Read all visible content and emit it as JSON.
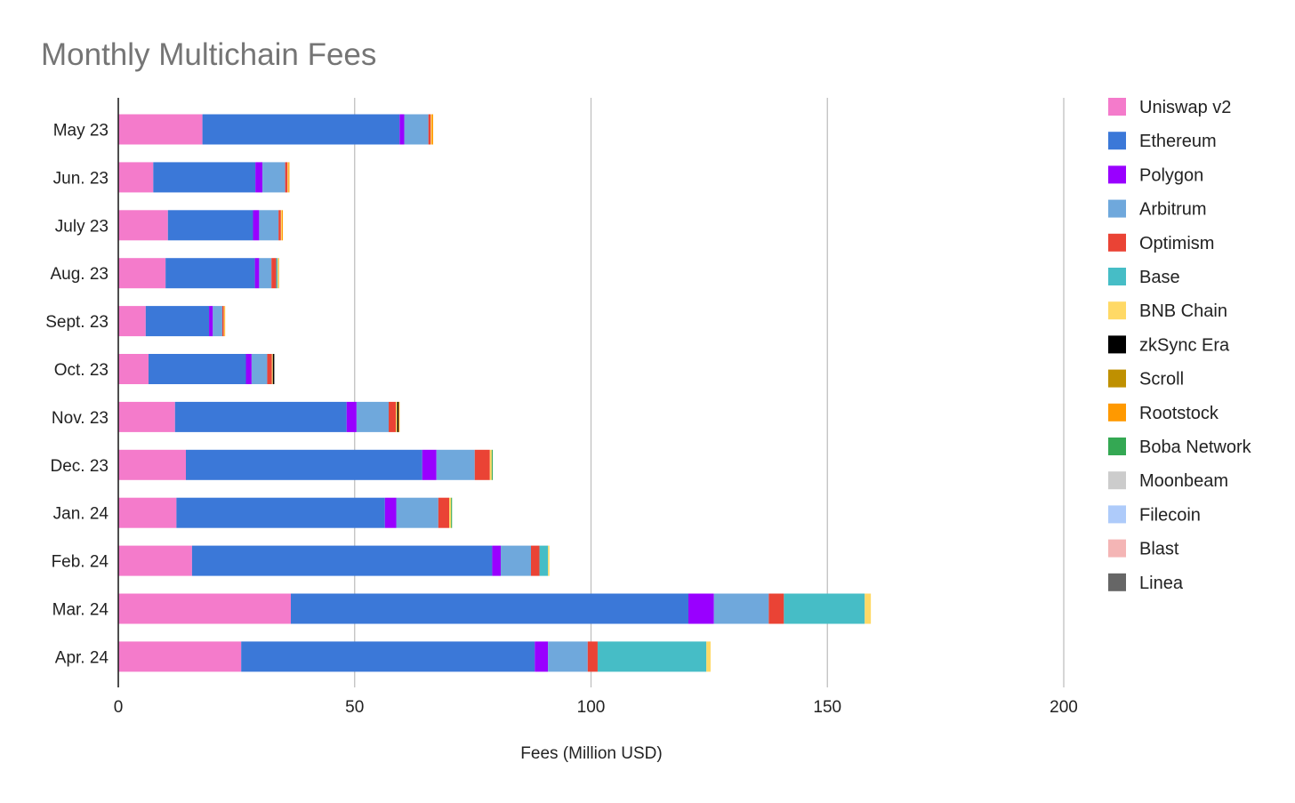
{
  "chart_data": {
    "type": "bar",
    "orientation": "horizontal",
    "stacked": true,
    "title": "Monthly Multichain Fees",
    "xlabel": "Fees (Million USD)",
    "ylabel": "",
    "xlim": [
      0,
      200
    ],
    "xticks": [
      "0",
      "50",
      "100",
      "150",
      "200"
    ],
    "grid": "vertical",
    "legend_position": "right",
    "categories": [
      "May 23",
      "Jun. 23",
      "July 23",
      "Aug. 23",
      "Sept. 23",
      "Oct. 23",
      "Nov. 23",
      "Dec. 23",
      "Jan. 24",
      "Feb. 24",
      "Mar. 24",
      "Apr. 24"
    ],
    "series": [
      {
        "name": "Uniswap v2",
        "color": "#f47bcb",
        "values": [
          17.8,
          7.4,
          10.5,
          10.0,
          5.8,
          6.4,
          12.0,
          14.3,
          12.3,
          15.6,
          36.5,
          26.0
        ]
      },
      {
        "name": "Ethereum",
        "color": "#3b78d8",
        "values": [
          41.7,
          21.6,
          18.0,
          18.9,
          13.4,
          20.6,
          36.3,
          50.0,
          44.1,
          63.5,
          84.1,
          62.1
        ]
      },
      {
        "name": "Polygon",
        "color": "#9900ff",
        "values": [
          1.0,
          1.5,
          1.3,
          0.9,
          0.8,
          1.2,
          2.1,
          3.0,
          2.4,
          1.8,
          5.4,
          2.8
        ]
      },
      {
        "name": "Arbitrum",
        "color": "#6fa8dc",
        "values": [
          5.1,
          4.8,
          4.1,
          2.6,
          2.0,
          3.3,
          6.8,
          8.1,
          8.9,
          6.4,
          11.6,
          8.4
        ]
      },
      {
        "name": "Optimism",
        "color": "#ea4335",
        "values": [
          0.5,
          0.5,
          0.5,
          1.0,
          0.3,
          1.0,
          1.5,
          3.2,
          2.3,
          1.8,
          3.2,
          2.1
        ]
      },
      {
        "name": "Base",
        "color": "#46bdc6",
        "values": [
          0.0,
          0.0,
          0.0,
          0.3,
          0.0,
          0.0,
          0.0,
          0.0,
          0.0,
          1.8,
          17.1,
          23.0
        ]
      },
      {
        "name": "BNB Chain",
        "color": "#ffd966",
        "values": [
          0.2,
          0.2,
          0.2,
          0.2,
          0.2,
          0.2,
          0.3,
          0.4,
          0.4,
          0.3,
          1.3,
          0.9
        ]
      },
      {
        "name": "zkSync Era",
        "color": "#000000",
        "values": [
          0.0,
          0.0,
          0.0,
          0.0,
          0.0,
          0.3,
          0.3,
          0.0,
          0.0,
          0.0,
          0.0,
          0.0
        ]
      },
      {
        "name": "Scroll",
        "color": "#bf9000",
        "values": [
          0.0,
          0.0,
          0.0,
          0.0,
          0.0,
          0.0,
          0.0,
          0.0,
          0.0,
          0.0,
          0.0,
          0.0
        ]
      },
      {
        "name": "Rootstock",
        "color": "#ff9900",
        "values": [
          0.3,
          0.2,
          0.2,
          0.1,
          0.1,
          0.0,
          0.2,
          0.0,
          0.0,
          0.0,
          0.0,
          0.0
        ]
      },
      {
        "name": "Boba Network",
        "color": "#34a853",
        "values": [
          0.0,
          0.0,
          0.0,
          0.0,
          0.0,
          0.0,
          0.0,
          0.2,
          0.2,
          0.0,
          0.0,
          0.0
        ]
      },
      {
        "name": "Moonbeam",
        "color": "#cccccc",
        "values": [
          0.0,
          0.0,
          0.0,
          0.0,
          0.0,
          0.0,
          0.0,
          0.0,
          0.0,
          0.0,
          0.0,
          0.0
        ]
      },
      {
        "name": "Filecoin",
        "color": "#aecbfa",
        "values": [
          0.0,
          0.0,
          0.0,
          0.0,
          0.0,
          0.0,
          0.0,
          0.0,
          0.0,
          0.0,
          0.0,
          0.0
        ]
      },
      {
        "name": "Blast",
        "color": "#f4b5b5",
        "values": [
          0.0,
          0.0,
          0.0,
          0.0,
          0.0,
          0.0,
          0.0,
          0.0,
          0.0,
          0.0,
          0.0,
          0.0
        ]
      },
      {
        "name": "Linea",
        "color": "#666666",
        "values": [
          0.0,
          0.0,
          0.0,
          0.0,
          0.0,
          0.0,
          0.0,
          0.0,
          0.0,
          0.0,
          0.0,
          0.0
        ]
      }
    ]
  }
}
